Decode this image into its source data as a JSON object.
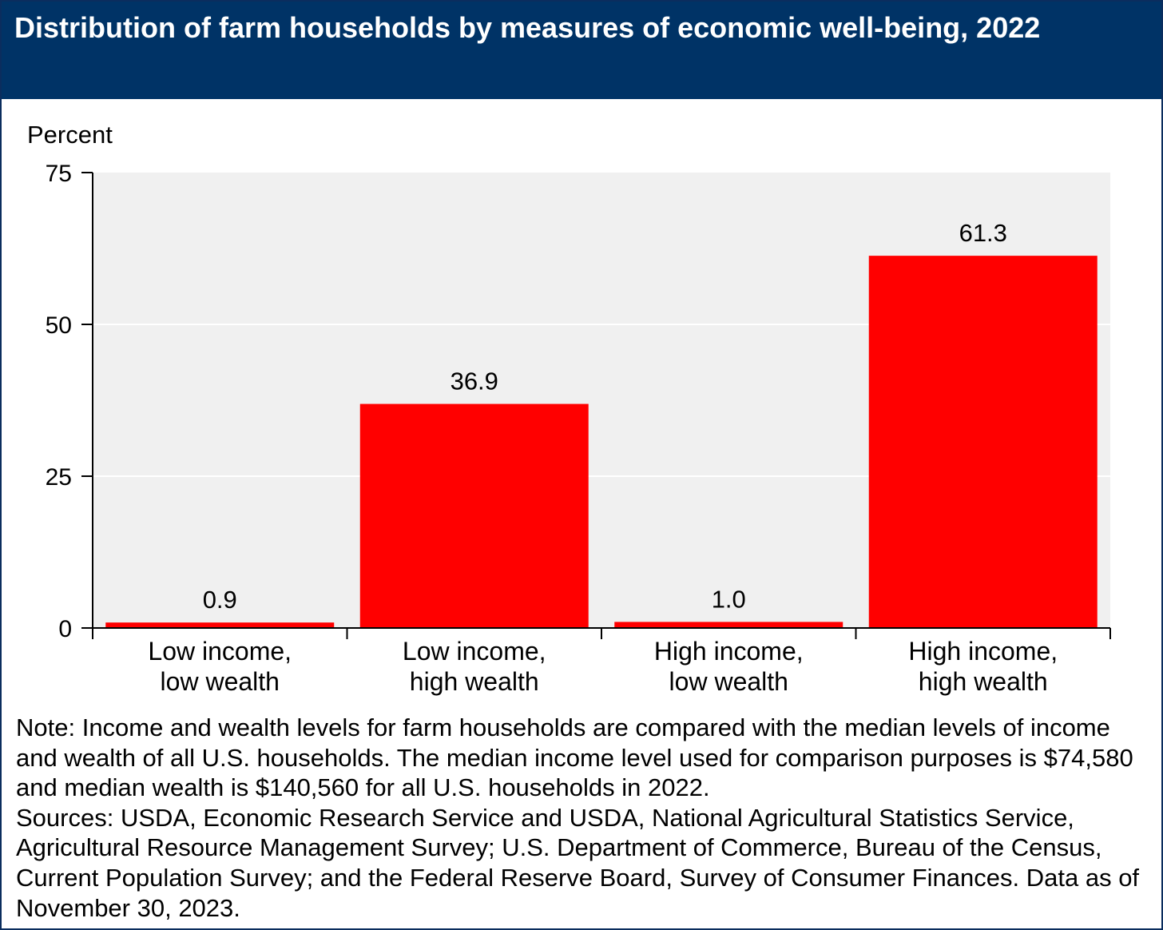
{
  "header": {
    "title": "Distribution of farm households by measures of economic well-being, 2022"
  },
  "chart_data": {
    "type": "bar",
    "title": "Distribution of farm households by measures of economic well-being, 2022",
    "ylabel": "Percent",
    "xlabel": "",
    "ylim": [
      0,
      75
    ],
    "yticks": [
      "0",
      "25",
      "50",
      "75"
    ],
    "grid": true,
    "categories": [
      [
        "Low income,",
        "low wealth"
      ],
      [
        "Low income,",
        "high wealth"
      ],
      [
        "High income,",
        "low wealth"
      ],
      [
        "High income,",
        "high wealth"
      ]
    ],
    "values": [
      0.9,
      36.9,
      1.0,
      61.3
    ],
    "data_labels": [
      "0.9",
      "36.9",
      "1.0",
      "61.3"
    ],
    "colors": {
      "bar": "#ff0000",
      "plot_background": "#f0f0f0",
      "gridline": "#ffffff",
      "title_bar": "#003366"
    }
  },
  "footer": {
    "note": "Note: Income and wealth levels for farm households are compared with the median levels of income and wealth of all U.S. households. The median income level used for comparison purposes is $74,580 and median wealth is $140,560 for all U.S. households in 2022.",
    "sources": "Sources: USDA, Economic Research Service and USDA, National Agricultural Statistics Service, Agricultural Resource Management Survey; U.S. Department of Commerce, Bureau of the Census, Current Population Survey; and the Federal Reserve Board, Survey of Consumer Finances. Data as of November 30, 2023."
  }
}
